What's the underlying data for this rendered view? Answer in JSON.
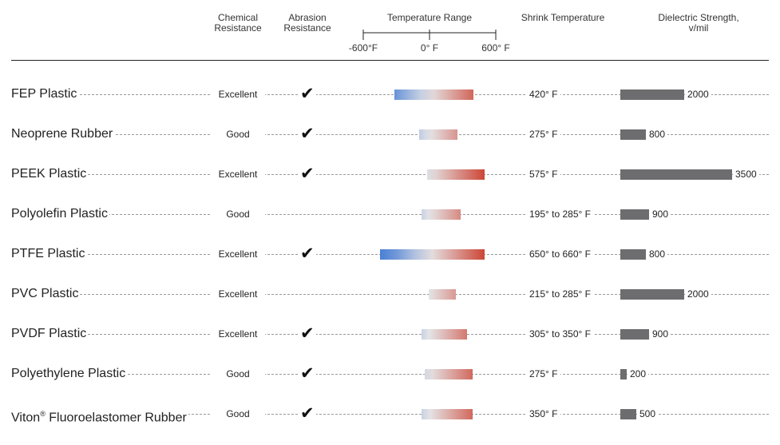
{
  "headers": {
    "chemical": [
      "Chemical",
      "Resistance"
    ],
    "abrasion": [
      "Abrasion",
      "Resistance"
    ],
    "temperature": "Temperature Range",
    "shrink": "Shrink Temperature",
    "dielectric": [
      "Dielectric Strength,",
      "v/mil"
    ]
  },
  "colors": {
    "cold": "#4a7fd4",
    "neutral": "#e4e4e6",
    "hot": "#cc4030",
    "bar": "#6d6d70"
  },
  "chart_data": {
    "type": "table",
    "temperature_axis": {
      "ticks": [
        -600,
        0,
        600
      ],
      "tick_labels": [
        "-600°F",
        "0° F",
        "600° F"
      ],
      "range": [
        -600,
        600
      ],
      "unit": "°F"
    },
    "dielectric_max": 3500,
    "rows": [
      {
        "name": "FEP Plastic",
        "chemical": "Excellent",
        "abrasion": true,
        "temp_min": -320,
        "temp_max": 400,
        "shrink": "420° F",
        "dielectric": 2000,
        "dielectric_label": "2000"
      },
      {
        "name": "Neoprene Rubber",
        "chemical": "Good",
        "abrasion": true,
        "temp_min": -95,
        "temp_max": 250,
        "shrink": "275° F",
        "dielectric": 800,
        "dielectric_label": "800"
      },
      {
        "name": "PEEK Plastic",
        "chemical": "Excellent",
        "abrasion": true,
        "temp_min": -20,
        "temp_max": 500,
        "shrink": "575° F",
        "dielectric": 3500,
        "dielectric_label": "3500"
      },
      {
        "name": "Polyolefin Plastic",
        "chemical": "Good",
        "abrasion": false,
        "temp_min": -70,
        "temp_max": 285,
        "shrink": "195° to 285° F",
        "dielectric": 900,
        "dielectric_label": "900"
      },
      {
        "name": "PTFE Plastic",
        "chemical": "Excellent",
        "abrasion": true,
        "temp_min": -450,
        "temp_max": 500,
        "shrink": "650° to 660° F",
        "dielectric": 800,
        "dielectric_label": "800"
      },
      {
        "name": "PVC Plastic",
        "chemical": "Excellent",
        "abrasion": false,
        "temp_min": -5,
        "temp_max": 240,
        "shrink": "215° to 285° F",
        "dielectric": 2000,
        "dielectric_label": "2000"
      },
      {
        "name": "PVDF Plastic",
        "chemical": "Excellent",
        "abrasion": true,
        "temp_min": -70,
        "temp_max": 340,
        "shrink": "305° to 350° F",
        "dielectric": 900,
        "dielectric_label": "900"
      },
      {
        "name": "Polyethylene Plastic",
        "chemical": "Good",
        "abrasion": true,
        "temp_min": -40,
        "temp_max": 390,
        "shrink": "275° F",
        "dielectric": 200,
        "dielectric_label": "200"
      },
      {
        "name": "Viton",
        "name_sup": "®",
        "name_suffix": " Fluoroelastomer Rubber",
        "chemical": "Good",
        "abrasion": true,
        "temp_min": -70,
        "temp_max": 390,
        "shrink": "350° F",
        "dielectric": 500,
        "dielectric_label": "500"
      }
    ]
  }
}
